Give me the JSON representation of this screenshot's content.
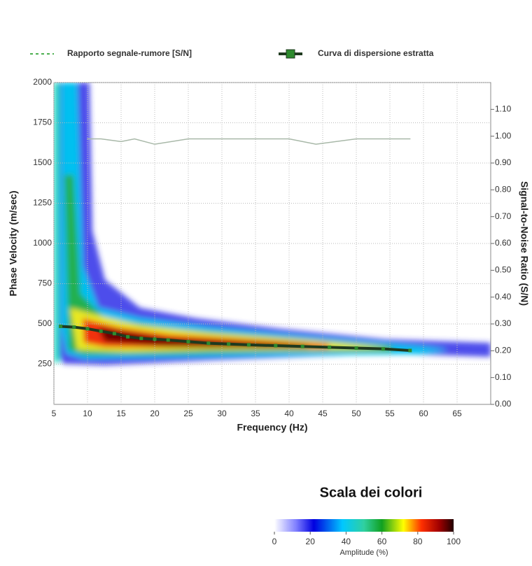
{
  "chart_data": {
    "type": "line",
    "x_label": "Frequency (Hz)",
    "y_label": "Phase Velocity (m/sec)",
    "y2_label": "Signal-to-Noise Ratio (S/N)",
    "xlim": [
      5,
      70
    ],
    "xticks": [
      5,
      10,
      15,
      20,
      25,
      30,
      35,
      40,
      45,
      50,
      55,
      60,
      65
    ],
    "ylim": [
      0,
      2000
    ],
    "yticks": [
      250,
      500,
      750,
      1000,
      1250,
      1500,
      1750,
      2000
    ],
    "y2lim": [
      0,
      1.2
    ],
    "y2ticks": [
      {
        "value": 0,
        "label": "0.00"
      },
      {
        "value": 0.1,
        "label": "0.10"
      },
      {
        "value": 0.2,
        "label": "0.20"
      },
      {
        "value": 0.3,
        "label": "0.30"
      },
      {
        "value": 0.4,
        "label": "0.40"
      },
      {
        "value": 0.5,
        "label": "0.50"
      },
      {
        "value": 0.6,
        "label": "0.60"
      },
      {
        "value": 0.7,
        "label": "0.70"
      },
      {
        "value": 0.8,
        "label": "0.80"
      },
      {
        "value": 0.9,
        "label": "0.90"
      },
      {
        "value": 1.0,
        "label": "1.00"
      },
      {
        "value": 1.1,
        "label": "1.10"
      }
    ],
    "grid": true,
    "series": [
      {
        "name": "Rapporto segnale-rumore [S/N]",
        "color": "#a8b8a8",
        "axis": "y2",
        "dashed": true,
        "x": [
          10,
          12,
          15,
          17,
          20,
          25,
          30,
          35,
          40,
          44,
          50,
          55,
          58
        ],
        "values": [
          0.99,
          0.99,
          0.98,
          0.99,
          0.97,
          0.99,
          0.99,
          0.99,
          0.99,
          0.97,
          0.99,
          0.99,
          0.99
        ]
      },
      {
        "name": "Curva di dispersione estratta",
        "color": "#1f3a1f",
        "marker_color": "#2e8b2e",
        "x": [
          6,
          8,
          10,
          12,
          14,
          16,
          18,
          20,
          22,
          25,
          28,
          31,
          34,
          38,
          42,
          46,
          50,
          54,
          58
        ],
        "values": [
          485,
          480,
          470,
          455,
          440,
          420,
          410,
          405,
          400,
          390,
          380,
          375,
          370,
          365,
          360,
          355,
          350,
          345,
          335
        ]
      }
    ],
    "color_scale": {
      "title": "Scala dei colori",
      "label": "Amplitude (%)",
      "lim": [
        0,
        100
      ],
      "ticks": [
        0,
        20,
        40,
        60,
        80,
        100
      ]
    }
  }
}
